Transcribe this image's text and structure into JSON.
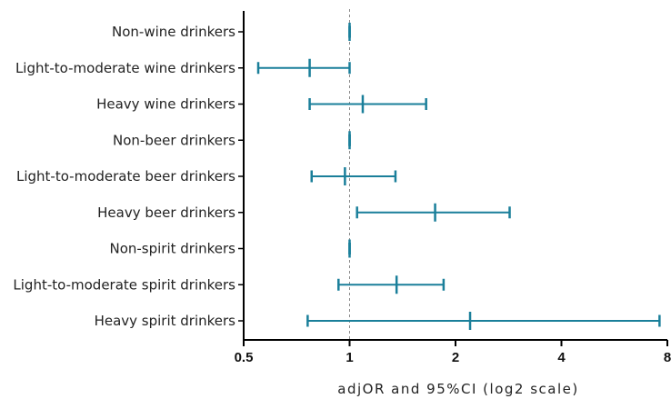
{
  "chart_data": {
    "type": "forest",
    "xlabel": "adjOR and 95%CI (log2 scale)",
    "x_scale": "log2",
    "xlim": [
      0.5,
      8
    ],
    "x_ticks": [
      0.5,
      1,
      2,
      4,
      8
    ],
    "x_tick_labels": [
      "0.5",
      "1",
      "2",
      "4",
      "8"
    ],
    "reference_line": 1,
    "grid": false,
    "color": "#1a7f9a",
    "rows": [
      {
        "label": "Non-wine drinkers",
        "or": 1.0,
        "lower": 1.0,
        "upper": 1.0
      },
      {
        "label": "Light-to-moderate wine drinkers",
        "or": 0.77,
        "lower": 0.55,
        "upper": 1.0
      },
      {
        "label": "Heavy wine drinkers",
        "or": 1.09,
        "lower": 0.77,
        "upper": 1.65
      },
      {
        "label": "Non-beer drinkers",
        "or": 1.0,
        "lower": 1.0,
        "upper": 1.0
      },
      {
        "label": "Light-to-moderate beer drinkers",
        "or": 0.97,
        "lower": 0.78,
        "upper": 1.35
      },
      {
        "label": "Heavy beer drinkers",
        "or": 1.75,
        "lower": 1.05,
        "upper": 2.85
      },
      {
        "label": "Non-spirit drinkers",
        "or": 1.0,
        "lower": 1.0,
        "upper": 1.0
      },
      {
        "label": "Light-to-moderate spirit drinkers",
        "or": 1.36,
        "lower": 0.93,
        "upper": 1.85
      },
      {
        "label": "Heavy spirit drinkers",
        "or": 2.2,
        "lower": 0.76,
        "upper": 7.6
      }
    ]
  }
}
